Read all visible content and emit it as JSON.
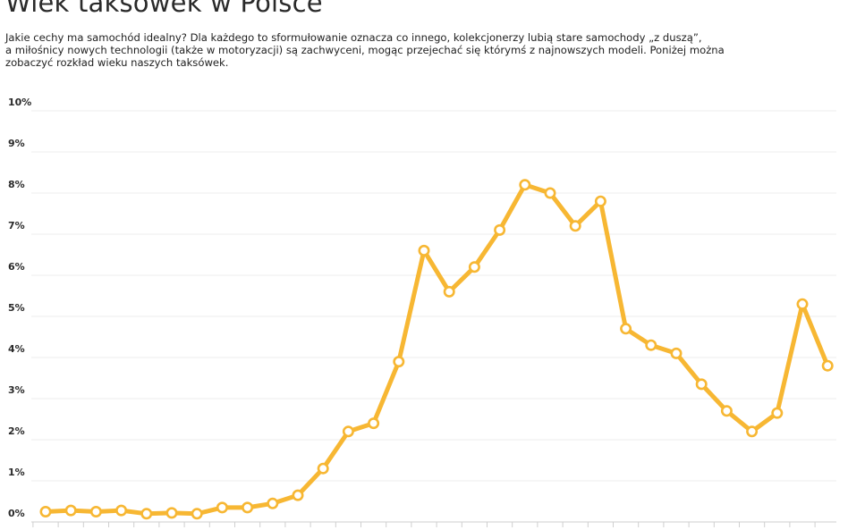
{
  "page": {
    "title": "Wiek taksówek w Polsce",
    "intro_lines": [
      "Jakie cechy ma samochód idealny? Dla każdego to sformułowanie oznacza co innego, kolekcjonerzy lubią stare samochody „z duszą”,",
      "a miłośnicy nowych technologii (także w motoryzacji) są zachwyceni, mogąc przejechać się którymś z najnowszych modeli. Poniżej można",
      "zobaczyć rozkład wieku naszych taksówek."
    ]
  },
  "chart_data": {
    "type": "line",
    "title": "",
    "xlabel": "",
    "ylabel": "",
    "ylim": [
      0,
      10
    ],
    "yticks": [
      0,
      1,
      2,
      3,
      4,
      5,
      6,
      7,
      8,
      9,
      10
    ],
    "ytick_labels": [
      "0%",
      "1%",
      "2%",
      "3%",
      "4%",
      "5%",
      "6%",
      "7%",
      "8%",
      "9%",
      "10%"
    ],
    "grid": true,
    "series": [
      {
        "name": "",
        "color": "#f7b733",
        "values": [
          0.25,
          0.28,
          0.25,
          0.28,
          0.2,
          0.22,
          0.2,
          0.35,
          0.35,
          0.45,
          0.65,
          1.3,
          2.2,
          2.4,
          3.9,
          6.6,
          5.6,
          6.2,
          7.1,
          8.2,
          8.0,
          7.2,
          7.8,
          4.7,
          4.3,
          4.1,
          3.35,
          2.7,
          2.2,
          2.65,
          5.3,
          3.8
        ]
      }
    ]
  }
}
